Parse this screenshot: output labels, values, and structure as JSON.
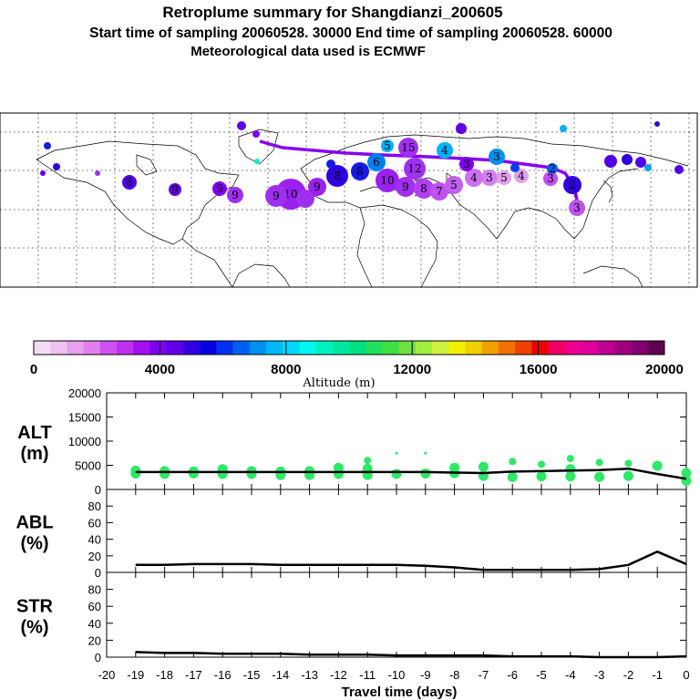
{
  "title": {
    "line1": "Retroplume summary for Shangdianzi_200605",
    "line2": "Start time of sampling 20060528. 30000     End time of sampling 20060528. 60000",
    "line3": "Meteorological data used is ECMWF"
  },
  "colorbar": {
    "label": "Altitude (m)",
    "ticks": [
      "0",
      "4000",
      "8000",
      "12000",
      "16000",
      "20000"
    ],
    "colors": [
      "#f5dcf5",
      "#f0c0f0",
      "#e8a0f0",
      "#e080f0",
      "#d050f0",
      "#c030f0",
      "#a010f0",
      "#8000f0",
      "#6000e8",
      "#3000e0",
      "#0000e0",
      "#0030f0",
      "#0060f0",
      "#0090f0",
      "#00b8f8",
      "#00d8f8",
      "#00f8f0",
      "#00f0c0",
      "#00e8a0",
      "#00e080",
      "#20e060",
      "#40e040",
      "#70e040",
      "#a0f040",
      "#d0f040",
      "#f0f000",
      "#f0d000",
      "#f0a000",
      "#f07000",
      "#f04000",
      "#f00000",
      "#f00060",
      "#f00090",
      "#e000a0",
      "#c00090",
      "#a00080",
      "#800070",
      "#600050"
    ]
  },
  "map": {
    "description_colors": {
      "track": "#8800ee"
    }
  },
  "chart_data": [
    {
      "type": "scatter",
      "panel": "ALT",
      "ylabel_line1": "ALT",
      "ylabel_line2": "(m)",
      "ylim": [
        0,
        20000
      ],
      "yticks": [
        "0",
        "5000",
        "10000",
        "15000",
        "20000"
      ],
      "xlim": [
        -20,
        0
      ],
      "line_x": [
        -19,
        -18,
        -17,
        -16,
        -15,
        -14,
        -13,
        -12,
        -11,
        -10,
        -9,
        -8,
        -7,
        -6,
        -5,
        -4,
        -3,
        -2,
        -1,
        0
      ],
      "line_y": [
        3600,
        3600,
        3600,
        3600,
        3600,
        3600,
        3600,
        3600,
        3600,
        3600,
        3600,
        3500,
        3400,
        3700,
        3800,
        3900,
        4000,
        4300,
        3200,
        2200
      ],
      "points": [
        {
          "x": -19,
          "y": 3300
        },
        {
          "x": -19,
          "y": 3900
        },
        {
          "x": -18,
          "y": 3200
        },
        {
          "x": -18,
          "y": 3800
        },
        {
          "x": -17,
          "y": 3300
        },
        {
          "x": -17,
          "y": 3700
        },
        {
          "x": -16,
          "y": 3200
        },
        {
          "x": -16,
          "y": 4200
        },
        {
          "x": -15,
          "y": 3200
        },
        {
          "x": -15,
          "y": 3800
        },
        {
          "x": -14,
          "y": 3000
        },
        {
          "x": -14,
          "y": 3700
        },
        {
          "x": -13,
          "y": 3000
        },
        {
          "x": -13,
          "y": 3800
        },
        {
          "x": -12,
          "y": 3200
        },
        {
          "x": -12,
          "y": 4500
        },
        {
          "x": -11,
          "y": 3000
        },
        {
          "x": -11,
          "y": 4300
        },
        {
          "x": -11,
          "y": 6000
        },
        {
          "x": -10,
          "y": 3200
        },
        {
          "x": -10,
          "y": 7500
        },
        {
          "x": -9,
          "y": 3300
        },
        {
          "x": -9,
          "y": 7500
        },
        {
          "x": -8,
          "y": 3400
        },
        {
          "x": -8,
          "y": 4500
        },
        {
          "x": -7,
          "y": 2800
        },
        {
          "x": -7,
          "y": 4700
        },
        {
          "x": -6,
          "y": 2600
        },
        {
          "x": -6,
          "y": 5800
        },
        {
          "x": -5,
          "y": 2700
        },
        {
          "x": -5,
          "y": 5200
        },
        {
          "x": -4,
          "y": 2700
        },
        {
          "x": -4,
          "y": 4200
        },
        {
          "x": -4,
          "y": 6400
        },
        {
          "x": -3,
          "y": 2600
        },
        {
          "x": -3,
          "y": 5600
        },
        {
          "x": -2,
          "y": 2800
        },
        {
          "x": -2,
          "y": 5400
        },
        {
          "x": -1,
          "y": 4900
        },
        {
          "x": 0,
          "y": 1800
        },
        {
          "x": 0,
          "y": 3400
        }
      ]
    },
    {
      "type": "line",
      "panel": "ABL",
      "ylabel_line1": "ABL",
      "ylabel_line2": "(%)",
      "ylim": [
        0,
        100
      ],
      "yticks": [
        "0",
        "20",
        "40",
        "60",
        "80"
      ],
      "x": [
        -19,
        -18,
        -17,
        -16,
        -15,
        -14,
        -13,
        -12,
        -11,
        -10,
        -9,
        -8,
        -7,
        -6,
        -5,
        -4,
        -3,
        -2,
        -1,
        0
      ],
      "y": [
        9,
        9,
        10,
        10,
        10,
        9,
        9,
        9,
        9,
        9,
        8,
        6,
        3,
        3,
        3,
        3,
        4,
        9,
        25,
        10
      ]
    },
    {
      "type": "line",
      "panel": "STR",
      "ylabel_line1": "STR",
      "ylabel_line2": "(%)",
      "ylim": [
        0,
        100
      ],
      "yticks": [
        "0",
        "20",
        "40",
        "60",
        "80"
      ],
      "x": [
        -19,
        -18,
        -17,
        -16,
        -15,
        -14,
        -13,
        -12,
        -11,
        -10,
        -9,
        -8,
        -7,
        -6,
        -5,
        -4,
        -3,
        -2,
        -1,
        0
      ],
      "y": [
        6,
        5,
        5,
        4,
        4,
        4,
        3,
        3,
        3,
        2,
        2,
        2,
        2,
        1,
        1,
        1,
        0,
        0,
        0,
        1
      ]
    }
  ],
  "xaxis": {
    "label": "Travel time (days)",
    "ticks": [
      "-20",
      "-19",
      "-18",
      "-17",
      "-16",
      "-15",
      "-14",
      "-13",
      "-12",
      "-11",
      "-10",
      "-9",
      "-8",
      "-7",
      "-6",
      "-5",
      "-4",
      "-3",
      "-2",
      "-1",
      "0"
    ]
  }
}
